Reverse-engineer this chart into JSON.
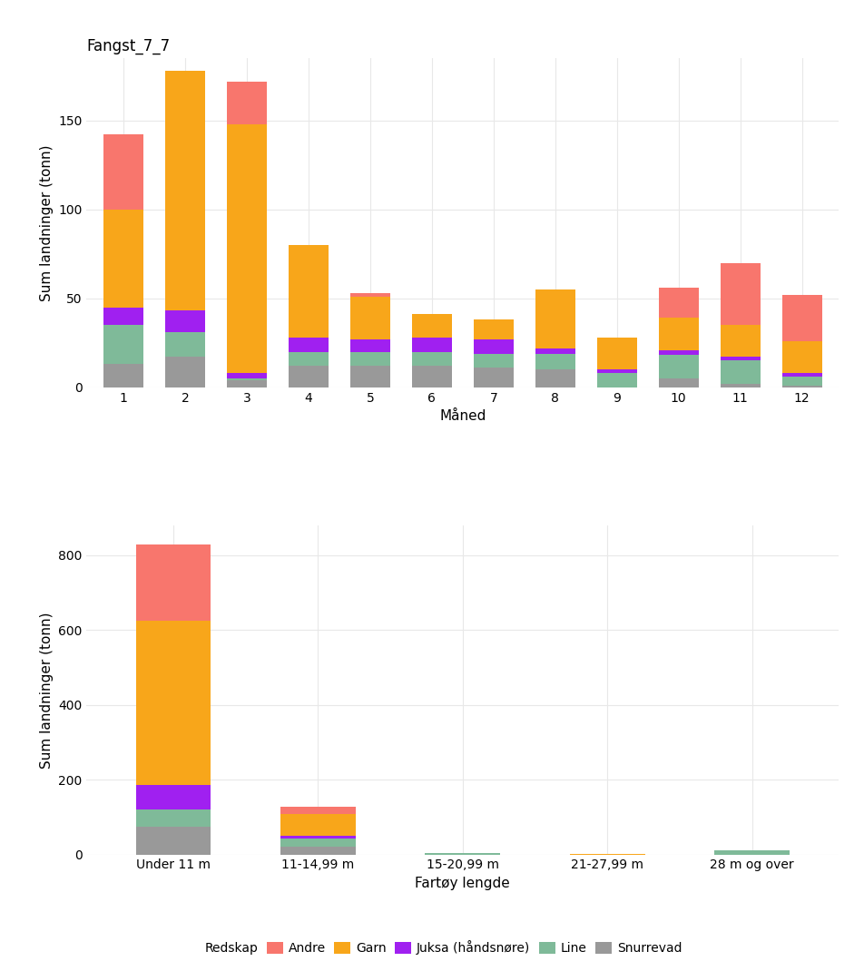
{
  "title": "Fangst_7_7",
  "plot1_xlabel": "Måned",
  "plot1_ylabel": "Sum landninger (tonn)",
  "plot2_xlabel": "Fartøy lengde",
  "plot2_ylabel": "Sum landninger (tonn)",
  "colors_map": {
    "Andre": "#F8766D",
    "Garn": "#F8A61A",
    "Juksa": "#A020F0",
    "Line": "#7FBA99",
    "Snurrevad": "#999999"
  },
  "stack_order": [
    "Snurrevad",
    "Line",
    "Juksa",
    "Garn",
    "Andre"
  ],
  "month_data": {
    "months": [
      1,
      2,
      3,
      4,
      5,
      6,
      7,
      8,
      9,
      10,
      11,
      12
    ],
    "Snurrevad": [
      13,
      17,
      4,
      12,
      12,
      12,
      11,
      10,
      0,
      5,
      2,
      1
    ],
    "Line": [
      22,
      14,
      1,
      8,
      8,
      8,
      8,
      9,
      8,
      13,
      13,
      5
    ],
    "Juksa": [
      10,
      12,
      3,
      8,
      7,
      8,
      8,
      3,
      2,
      3,
      2,
      2
    ],
    "Garn": [
      55,
      135,
      140,
      52,
      24,
      13,
      11,
      33,
      18,
      18,
      18,
      18
    ],
    "Andre": [
      42,
      0,
      24,
      0,
      2,
      0,
      0,
      0,
      0,
      17,
      35,
      26
    ]
  },
  "length_data": {
    "categories": [
      "Under 11 m",
      "11-14,99 m",
      "15-20,99 m",
      "21-27,99 m",
      "28 m og over"
    ],
    "Snurrevad": [
      75,
      22,
      0,
      0,
      0
    ],
    "Line": [
      45,
      20,
      3,
      0,
      10
    ],
    "Juksa": [
      65,
      8,
      0,
      0,
      0
    ],
    "Garn": [
      440,
      58,
      0,
      1,
      0
    ],
    "Andre": [
      203,
      20,
      0,
      0,
      0
    ]
  },
  "legend_entries": [
    {
      "label": "Redskap",
      "color": null
    },
    {
      "label": "Andre",
      "color": "#F8766D"
    },
    {
      "label": "Garn",
      "color": "#F8A61A"
    },
    {
      "label": "Juksa (håndsnøre)",
      "color": "#A020F0"
    },
    {
      "label": "Line",
      "color": "#7FBA99"
    },
    {
      "label": "Snurrevad",
      "color": "#999999"
    }
  ],
  "bg": "#FFFFFF",
  "grid_color": "#E8E8E8",
  "plot1_ylim": [
    0,
    185
  ],
  "plot1_yticks": [
    0,
    50,
    100,
    150
  ],
  "plot2_ylim": [
    0,
    880
  ],
  "plot2_yticks": [
    0,
    200,
    400,
    600,
    800
  ]
}
